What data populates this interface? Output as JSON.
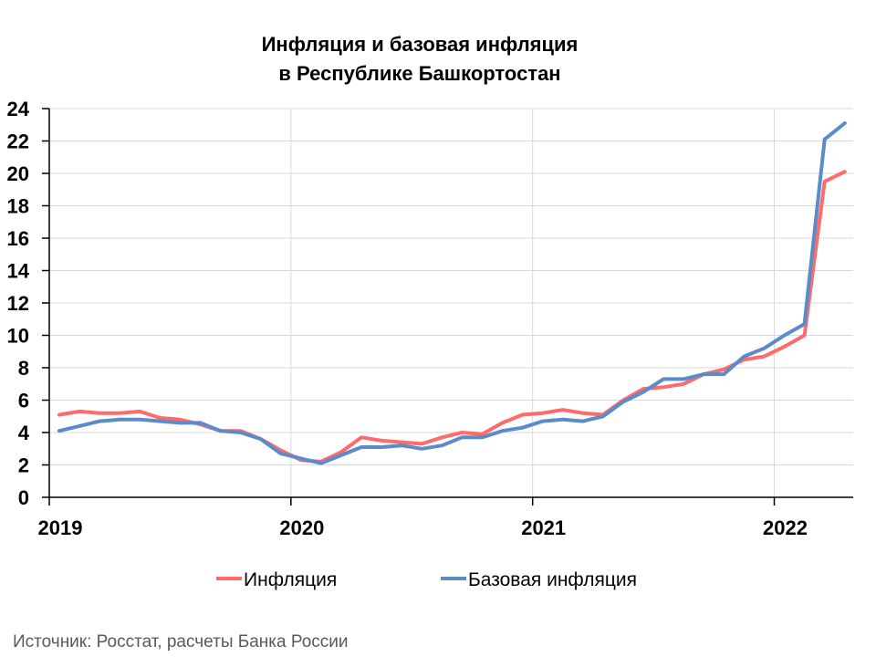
{
  "chart_data": {
    "type": "line",
    "title": [
      "Инфляция и базовая инфляция",
      "в  Республике Башкортостан"
    ],
    "xlabel": "",
    "ylabel": "",
    "ylim": [
      0,
      24
    ],
    "y_ticks": [
      "0",
      "2",
      "4",
      "6",
      "8",
      "10",
      "12",
      "14",
      "16",
      "18",
      "20",
      "22",
      "24"
    ],
    "x_ticks": [
      "2019",
      "2020",
      "2021",
      "2022"
    ],
    "grid": true,
    "legend_position": "bottom",
    "x": [
      "2019-01",
      "2019-02",
      "2019-03",
      "2019-04",
      "2019-05",
      "2019-06",
      "2019-07",
      "2019-08",
      "2019-09",
      "2019-10",
      "2019-11",
      "2019-12",
      "2020-01",
      "2020-02",
      "2020-03",
      "2020-04",
      "2020-05",
      "2020-06",
      "2020-07",
      "2020-08",
      "2020-09",
      "2020-10",
      "2020-11",
      "2020-12",
      "2021-01",
      "2021-02",
      "2021-03",
      "2021-04",
      "2021-05",
      "2021-06",
      "2021-07",
      "2021-08",
      "2021-09",
      "2021-10",
      "2021-11",
      "2021-12",
      "2022-01",
      "2022-02",
      "2022-03",
      "2022-04"
    ],
    "series": [
      {
        "name": "Инфляция",
        "color": "#ff6b6b",
        "values": [
          5.1,
          5.3,
          5.2,
          5.2,
          5.3,
          4.9,
          4.8,
          4.5,
          4.1,
          4.1,
          3.6,
          2.9,
          2.3,
          2.2,
          2.8,
          3.7,
          3.5,
          3.4,
          3.3,
          3.7,
          4.0,
          3.9,
          4.6,
          5.1,
          5.2,
          5.4,
          5.2,
          5.1,
          6.0,
          6.7,
          6.8,
          7.0,
          7.6,
          7.9,
          8.5,
          8.7,
          9.3,
          10.0,
          19.5,
          20.1
        ]
      },
      {
        "name": "Базовая инфляция",
        "color": "#5b8bc9",
        "values": [
          4.1,
          4.4,
          4.7,
          4.8,
          4.8,
          4.7,
          4.6,
          4.6,
          4.1,
          4.0,
          3.6,
          2.7,
          2.4,
          2.1,
          2.6,
          3.1,
          3.1,
          3.2,
          3.0,
          3.2,
          3.7,
          3.7,
          4.1,
          4.3,
          4.7,
          4.8,
          4.7,
          5.0,
          5.9,
          6.5,
          7.3,
          7.3,
          7.6,
          7.6,
          8.7,
          9.2,
          10.0,
          10.7,
          22.1,
          23.1
        ]
      }
    ]
  },
  "source": "Источник: Росстат, расчеты Банка России"
}
